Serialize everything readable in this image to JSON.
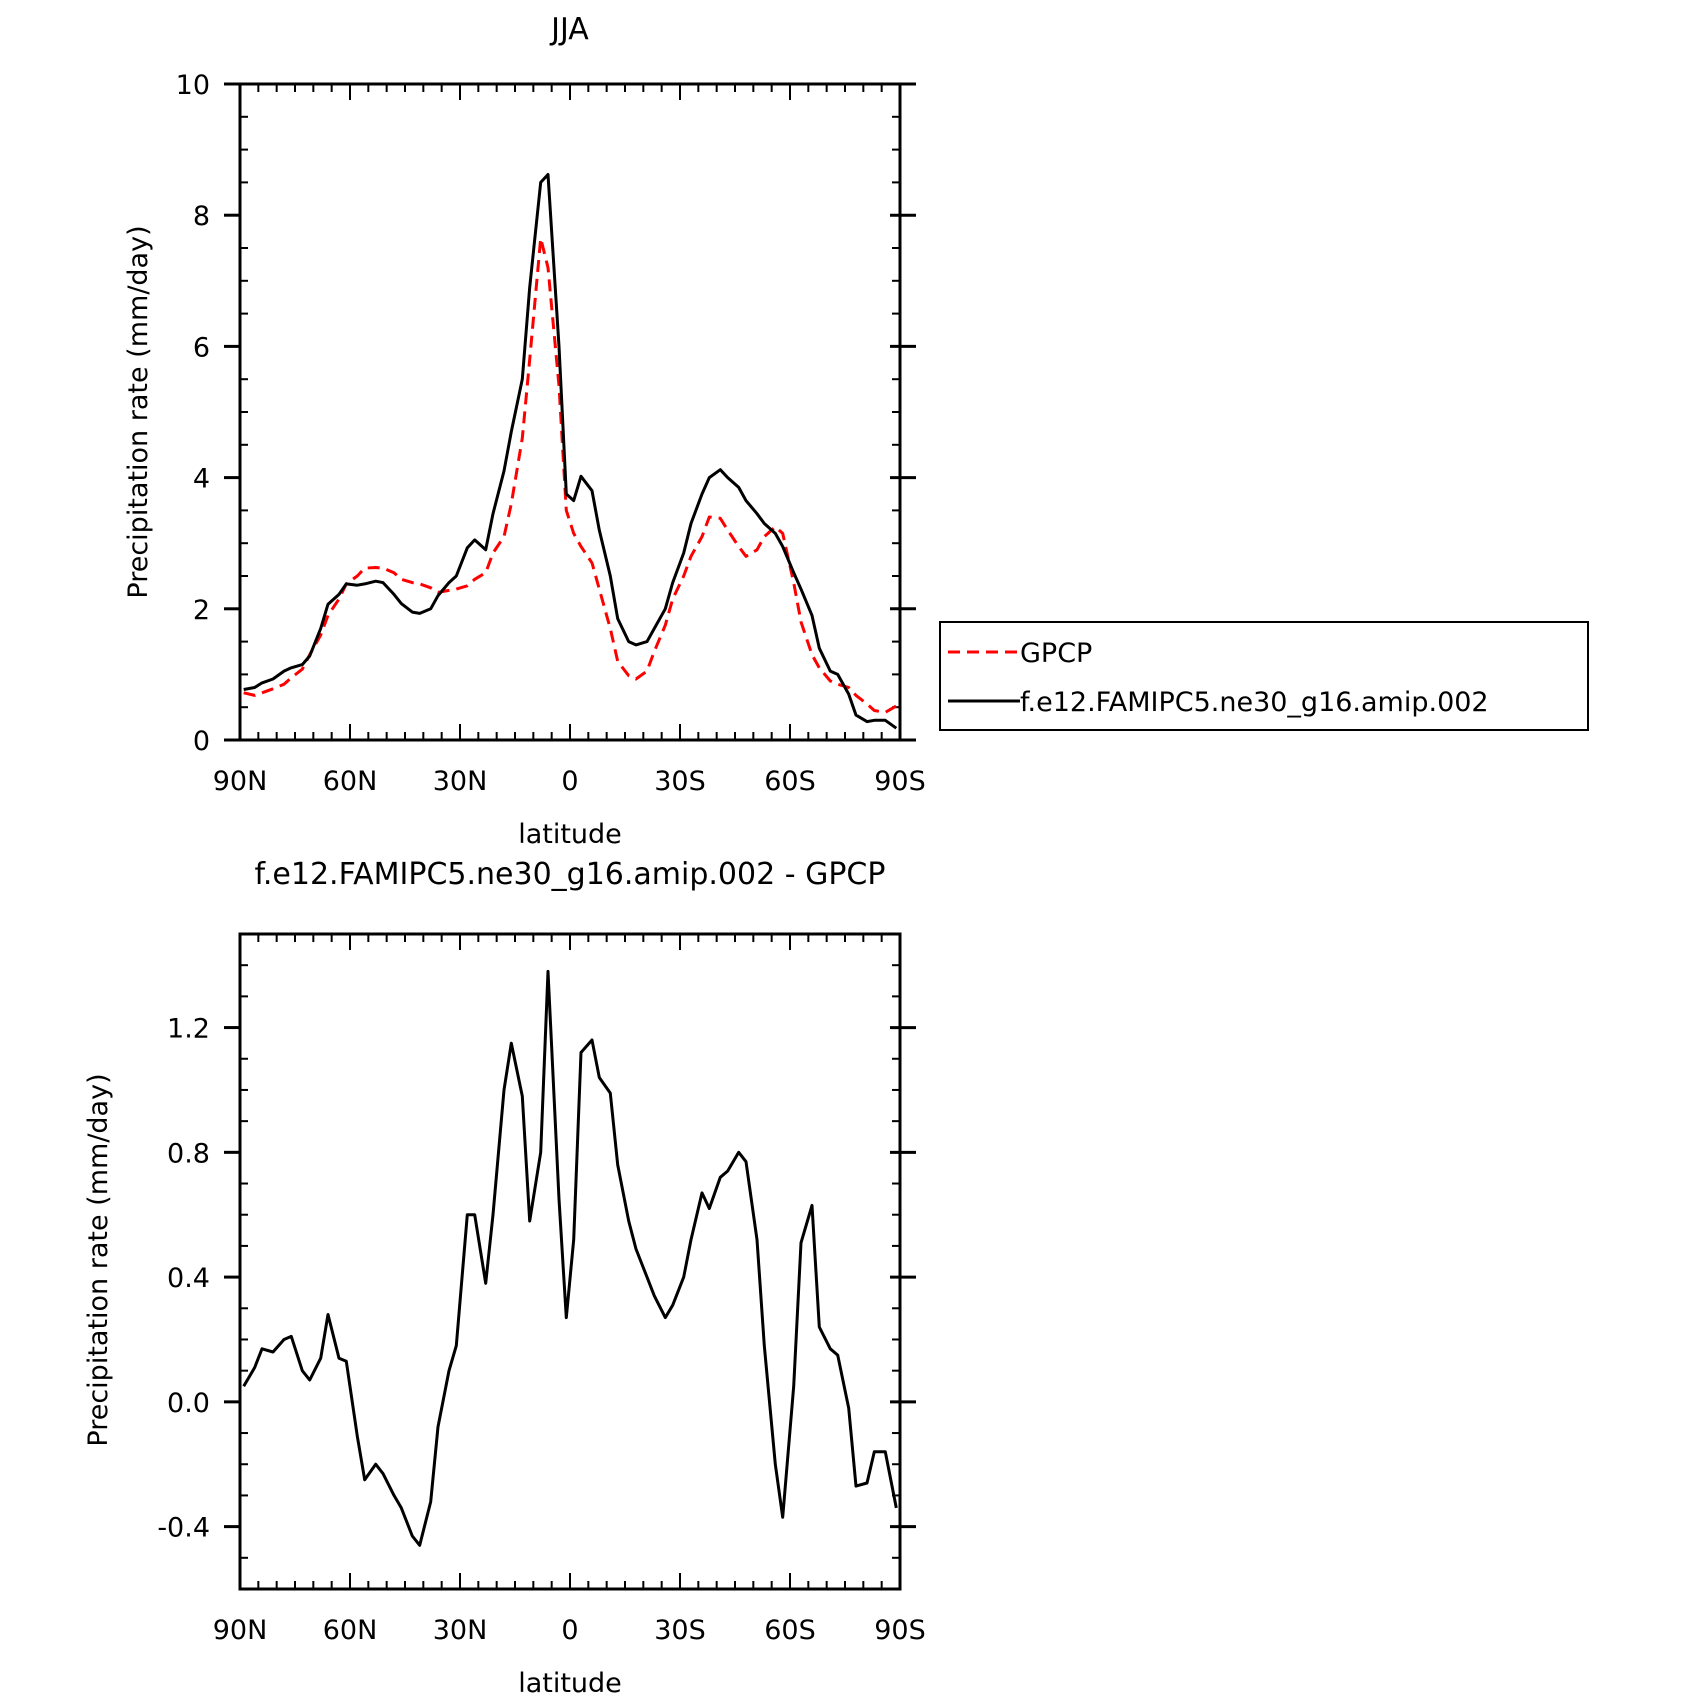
{
  "chart_data": [
    {
      "type": "line",
      "title": "JJA",
      "xlabel": "latitude",
      "ylabel": "Precipitation rate (mm/day)",
      "xlim": [
        90,
        -90
      ],
      "ylim": [
        0,
        10
      ],
      "xticks": [
        90,
        60,
        30,
        0,
        -30,
        -60,
        -90
      ],
      "xtick_labels": [
        "90N",
        "60N",
        "30N",
        "0",
        "30S",
        "60S",
        "90S"
      ],
      "yticks": [
        0,
        2,
        4,
        6,
        8,
        10
      ],
      "ytick_labels": [
        "0",
        "2",
        "4",
        "6",
        "8",
        "10"
      ],
      "legend": "right",
      "series": [
        {
          "name": "GPCP",
          "color": "#ff0000",
          "dash": "dashed",
          "x": [
            89,
            86,
            84,
            81,
            78,
            76,
            73,
            71,
            68,
            66,
            63,
            61,
            58,
            56,
            53,
            51,
            48,
            46,
            43,
            41,
            38,
            36,
            33,
            31,
            28,
            26,
            23,
            21,
            18,
            16,
            13,
            11,
            8,
            6,
            3,
            1,
            -1,
            -3,
            -6,
            -8,
            -11,
            -13,
            -16,
            -18,
            -21,
            -23,
            -26,
            -28,
            -31,
            -33,
            -36,
            -38,
            -41,
            -43,
            -46,
            -48,
            -51,
            -53,
            -56,
            -58,
            -61,
            -63,
            -66,
            -68,
            -71,
            -73,
            -76,
            -78,
            -81,
            -83,
            -86,
            -89
          ],
          "y": [
            0.72,
            0.68,
            0.72,
            0.78,
            0.85,
            0.95,
            1.08,
            1.3,
            1.6,
            1.9,
            2.15,
            2.38,
            2.5,
            2.62,
            2.63,
            2.62,
            2.55,
            2.45,
            2.4,
            2.38,
            2.32,
            2.25,
            2.28,
            2.3,
            2.35,
            2.45,
            2.55,
            2.85,
            3.1,
            3.6,
            4.6,
            5.8,
            7.65,
            7.2,
            5.4,
            3.5,
            3.15,
            2.95,
            2.7,
            2.3,
            1.7,
            1.2,
            0.98,
            0.93,
            1.05,
            1.35,
            1.75,
            2.15,
            2.5,
            2.8,
            3.1,
            3.4,
            3.38,
            3.2,
            2.95,
            2.8,
            2.9,
            3.1,
            3.25,
            3.15,
            2.4,
            1.8,
            1.3,
            1.1,
            0.9,
            0.85,
            0.8,
            0.68,
            0.55,
            0.45,
            0.42,
            0.52
          ]
        },
        {
          "name": "f.e12.FAMIPC5.ne30_g16.amip.002",
          "color": "#000000",
          "dash": "solid",
          "x": [
            89,
            86,
            84,
            81,
            78,
            76,
            73,
            71,
            68,
            66,
            63,
            61,
            58,
            56,
            53,
            51,
            48,
            46,
            43,
            41,
            38,
            36,
            33,
            31,
            28,
            26,
            23,
            21,
            18,
            16,
            13,
            11,
            8,
            6,
            3,
            1,
            -1,
            -3,
            -6,
            -8,
            -11,
            -13,
            -16,
            -18,
            -21,
            -23,
            -26,
            -28,
            -31,
            -33,
            -36,
            -38,
            -41,
            -43,
            -46,
            -48,
            -51,
            -53,
            -56,
            -58,
            -61,
            -63,
            -66,
            -68,
            -71,
            -73,
            -76,
            -78,
            -81,
            -83,
            -86,
            -89
          ],
          "y": [
            0.77,
            0.8,
            0.87,
            0.93,
            1.05,
            1.1,
            1.15,
            1.28,
            1.7,
            2.07,
            2.22,
            2.38,
            2.36,
            2.38,
            2.42,
            2.4,
            2.22,
            2.08,
            1.95,
            1.93,
            2.0,
            2.2,
            2.4,
            2.5,
            2.93,
            3.05,
            2.9,
            3.45,
            4.1,
            4.7,
            5.5,
            6.9,
            8.5,
            8.62,
            6.0,
            3.75,
            3.65,
            4.02,
            3.8,
            3.2,
            2.5,
            1.85,
            1.5,
            1.45,
            1.5,
            1.7,
            2.0,
            2.4,
            2.85,
            3.3,
            3.75,
            4.0,
            4.12,
            4.0,
            3.85,
            3.65,
            3.45,
            3.3,
            3.15,
            2.95,
            2.55,
            2.3,
            1.9,
            1.4,
            1.05,
            1.0,
            0.7,
            0.38,
            0.28,
            0.3,
            0.3,
            0.18
          ]
        }
      ]
    },
    {
      "type": "line",
      "title": "f.e12.FAMIPC5.ne30_g16.amip.002 - GPCP",
      "xlabel": "latitude",
      "ylabel": "Precipitation rate (mm/day)",
      "xlim": [
        90,
        -90
      ],
      "ylim": [
        -0.6,
        1.5
      ],
      "xticks": [
        90,
        60,
        30,
        0,
        -30,
        -60,
        -90
      ],
      "xtick_labels": [
        "90N",
        "60N",
        "30N",
        "0",
        "30S",
        "60S",
        "90S"
      ],
      "yticks": [
        -0.4,
        0.0,
        0.4,
        0.8,
        1.2
      ],
      "ytick_labels": [
        "-0.4",
        "0.0",
        "0.4",
        "0.8",
        "1.2"
      ],
      "series": [
        {
          "color": "#000000",
          "dash": "solid",
          "x": [
            89,
            86,
            84,
            81,
            78,
            76,
            73,
            71,
            68,
            66,
            63,
            61,
            58,
            56,
            53,
            51,
            48,
            46,
            43,
            41,
            38,
            36,
            33,
            31,
            28,
            26,
            23,
            21,
            18,
            16,
            13,
            11,
            8,
            6,
            3,
            1,
            -1,
            -3,
            -6,
            -8,
            -11,
            -13,
            -16,
            -18,
            -21,
            -23,
            -26,
            -28,
            -31,
            -33,
            -36,
            -38,
            -41,
            -43,
            -46,
            -48,
            -51,
            -53,
            -56,
            -58,
            -61,
            -63,
            -66,
            -68,
            -71,
            -73,
            -76,
            -78,
            -81,
            -83,
            -86,
            -89
          ],
          "y": [
            0.05,
            0.11,
            0.17,
            0.16,
            0.2,
            0.21,
            0.1,
            0.07,
            0.14,
            0.28,
            0.14,
            0.13,
            -0.11,
            -0.25,
            -0.2,
            -0.23,
            -0.3,
            -0.34,
            -0.43,
            -0.46,
            -0.32,
            -0.08,
            0.1,
            0.18,
            0.6,
            0.6,
            0.38,
            0.6,
            1.0,
            1.15,
            0.98,
            0.58,
            0.8,
            1.38,
            0.65,
            0.27,
            0.52,
            1.12,
            1.16,
            1.04,
            0.99,
            0.76,
            0.58,
            0.49,
            0.4,
            0.34,
            0.27,
            0.31,
            0.4,
            0.52,
            0.67,
            0.62,
            0.72,
            0.74,
            0.8,
            0.77,
            0.52,
            0.18,
            -0.2,
            -0.37,
            0.05,
            0.51,
            0.63,
            0.24,
            0.17,
            0.15,
            -0.02,
            -0.27,
            -0.26,
            -0.16,
            -0.16,
            -0.34
          ]
        }
      ]
    }
  ]
}
